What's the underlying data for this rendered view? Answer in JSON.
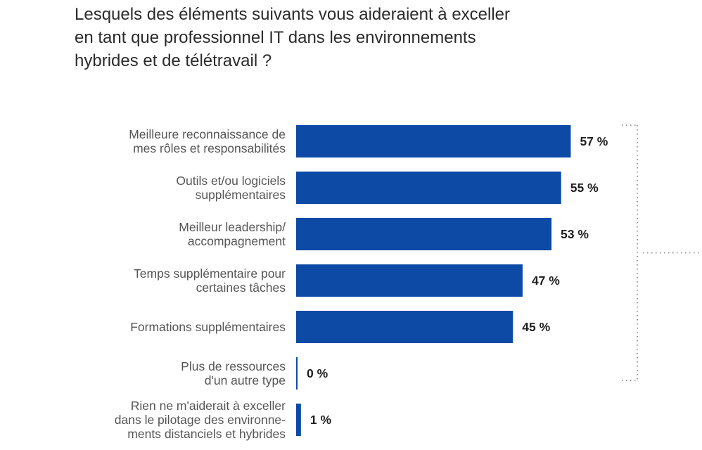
{
  "title": {
    "line1": "Lesquels des éléments suivants vous aideraient à exceller",
    "line2": "en tant que professionnel IT dans les environnements",
    "line3": "hybrides et de télétravail ?"
  },
  "colors": {
    "bar": "#0d4aa5",
    "label": "#555555",
    "value": "#1f1f1f",
    "bracket": "#9a9a9a"
  },
  "chart_data": {
    "type": "bar",
    "orientation": "horizontal",
    "categories": [
      [
        "Meilleure reconnaissance de",
        "mes rôles et responsabilités"
      ],
      [
        "Outils et/ou logiciels",
        "supplémentaires"
      ],
      [
        "Meilleur leadership/",
        "accompagnement"
      ],
      [
        "Temps supplémentaire pour",
        "certaines tâches"
      ],
      [
        "Formations supplémentaires"
      ],
      [
        "Plus de ressources",
        "d'un autre type"
      ],
      [
        "Rien ne m'aiderait à exceller",
        "dans le pilotage des environne-",
        "ments distanciels et hybrides"
      ]
    ],
    "values": [
      57,
      55,
      53,
      47,
      45,
      0,
      1
    ],
    "value_labels": [
      "57 %",
      "55 %",
      "53 %",
      "47 %",
      "45 %",
      "0 %",
      "1 %"
    ],
    "xlim": [
      0,
      100
    ],
    "grid": false,
    "legend": "none",
    "bracket_group": [
      0,
      5
    ]
  }
}
